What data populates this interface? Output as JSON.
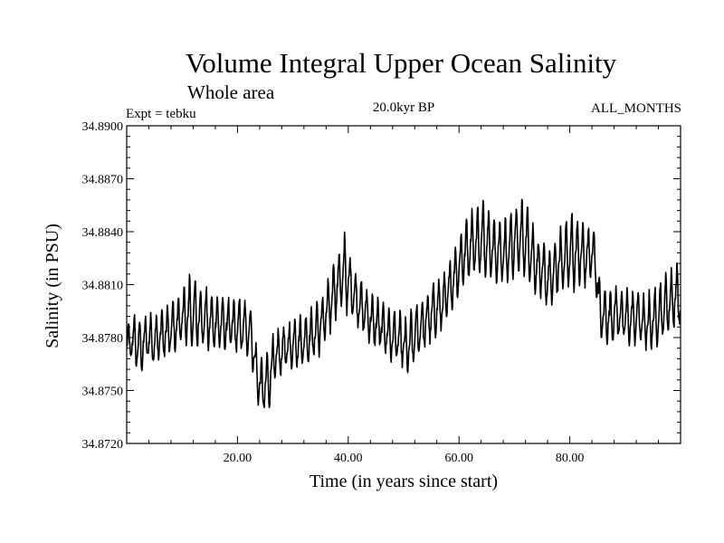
{
  "chart_data": {
    "type": "line",
    "title": "Volume Integral Upper Ocean Salinity",
    "subtitle": "Whole area",
    "experiment": "Expt = tebku",
    "period": "20.0kyr BP",
    "months": "ALL_MONTHS",
    "xlabel": "Time (in years since start)",
    "ylabel": "Salinity (in PSU)",
    "xlim": [
      0,
      100
    ],
    "ylim": [
      34.872,
      34.89
    ],
    "x_tick_values": [
      20,
      40,
      60,
      80
    ],
    "x_tick_labels": [
      "20.00",
      "40.00",
      "60.00",
      "80.00"
    ],
    "y_tick_values": [
      34.872,
      34.875,
      34.878,
      34.881,
      34.884,
      34.887,
      34.89
    ],
    "y_tick_labels": [
      "34.8720",
      "34.8750",
      "34.8780",
      "34.8810",
      "34.8840",
      "34.8870",
      "34.8900"
    ],
    "grid": false,
    "line_color": "#000000",
    "series": [
      {
        "name": "salinity",
        "resolution": "monthly (12 samples per year)",
        "annual_cycle": {
          "offsets": [
            0.0,
            0.00025,
            0.0006,
            0.0011,
            0.00165,
            0.0015,
            0.0006,
            -0.0002,
            -0.0008,
            -0.0011,
            -0.0009,
            -0.0004
          ],
          "amplitude_by_year": [
            0.7,
            1.0,
            1.0,
            0.8,
            1.0,
            1.0,
            1.0,
            1.0,
            1.0,
            1.0,
            1.3,
            1.4,
            1.3,
            1.2,
            1.2,
            1.1,
            1.0,
            1.0,
            1.0,
            1.0,
            1.0,
            1.0,
            1.0,
            0.9,
            1.0,
            1.2,
            1.0,
            0.9,
            0.9,
            0.9,
            1.0,
            1.0,
            1.0,
            1.0,
            1.1,
            1.0,
            1.1,
            1.2,
            1.2,
            1.5,
            1.0,
            0.9,
            0.9,
            0.9,
            0.9,
            0.9,
            0.9,
            1.0,
            1.0,
            0.9,
            1.0,
            1.1,
            1.0,
            1.0,
            1.0,
            1.0,
            1.0,
            1.0,
            1.1,
            1.1,
            1.1,
            1.2,
            1.3,
            1.3,
            1.4,
            1.5,
            1.3,
            1.2,
            1.3,
            1.3,
            1.4,
            1.5,
            1.3,
            1.2,
            1.1,
            1.1,
            1.1,
            1.1,
            1.2,
            1.4,
            1.5,
            1.3,
            1.2,
            1.0,
            1.0,
            1.0,
            1.0,
            1.0,
            1.0,
            1.0,
            1.0,
            1.0,
            1.0,
            1.0,
            1.1,
            1.1,
            1.2,
            1.2,
            1.2,
            1.3
          ]
        },
        "annual_mean_years": [
          0.5,
          1.5,
          2.5,
          3.5,
          4.5,
          5.5,
          6.5,
          7.5,
          8.5,
          9.5,
          10.5,
          11.5,
          12.5,
          13.5,
          14.5,
          15.5,
          16.5,
          17.5,
          18.5,
          19.5,
          20.5,
          21.5,
          22.5,
          23.5,
          24.5,
          25.5,
          26.5,
          27.5,
          28.5,
          29.5,
          30.5,
          31.5,
          32.5,
          33.5,
          34.5,
          35.5,
          36.5,
          37.5,
          38.5,
          39.5,
          40.5,
          41.5,
          42.5,
          43.5,
          44.5,
          45.5,
          46.5,
          47.5,
          48.5,
          49.5,
          50.5,
          51.5,
          52.5,
          53.5,
          54.5,
          55.5,
          56.5,
          57.5,
          58.5,
          59.5,
          60.5,
          61.5,
          62.5,
          63.5,
          64.5,
          65.5,
          66.5,
          67.5,
          68.5,
          69.5,
          70.5,
          71.5,
          72.5,
          73.5,
          74.5,
          75.5,
          76.5,
          77.5,
          78.5,
          79.5,
          80.5,
          81.5,
          82.5,
          83.5,
          84.5,
          85.5,
          86.5,
          87.5,
          88.5,
          89.5,
          90.5,
          91.5,
          92.5,
          93.5,
          94.5,
          95.5,
          96.5,
          97.5,
          98.5,
          99.5
        ],
        "annual_mean_values": [
          34.8775,
          34.8776,
          34.8772,
          34.8778,
          34.8776,
          34.8778,
          34.878,
          34.8781,
          34.8784,
          34.8787,
          34.8789,
          34.8792,
          34.879,
          34.8789,
          34.8788,
          34.8786,
          34.8787,
          34.8785,
          34.8785,
          34.8784,
          34.8784,
          34.8783,
          34.8781,
          34.8756,
          34.8749,
          34.8752,
          34.8765,
          34.8769,
          34.8772,
          34.8773,
          34.8776,
          34.8775,
          34.8778,
          34.8779,
          34.8783,
          34.8788,
          34.8794,
          34.8805,
          34.881,
          34.8814,
          34.8807,
          34.88,
          34.8795,
          34.8791,
          34.8787,
          34.8785,
          34.8783,
          34.8779,
          34.8778,
          34.8777,
          34.8771,
          34.8776,
          34.8782,
          34.8785,
          34.8789,
          34.8793,
          34.8796,
          34.8799,
          34.8808,
          34.8815,
          34.8822,
          34.8828,
          34.8831,
          34.8832,
          34.8833,
          34.883,
          34.8827,
          34.8826,
          34.8825,
          34.883,
          34.8832,
          34.8833,
          34.8831,
          34.8822,
          34.8817,
          34.8813,
          34.881,
          34.8817,
          34.8821,
          34.8824,
          34.8825,
          34.8826,
          34.8824,
          34.8825,
          34.8825,
          34.8791,
          34.879,
          34.879,
          34.8792,
          34.879,
          34.8789,
          34.8789,
          34.879,
          34.8785,
          34.8786,
          34.8789,
          34.8792,
          34.8796,
          34.8799,
          34.8801
        ]
      }
    ]
  }
}
